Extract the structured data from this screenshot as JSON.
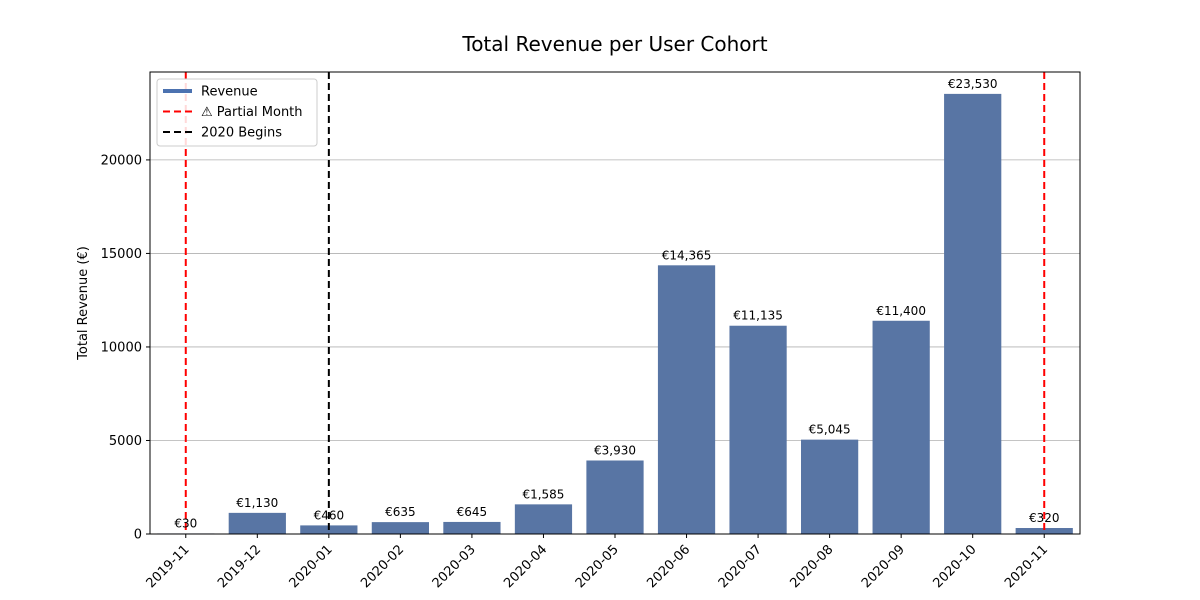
{
  "chart_data": {
    "type": "bar",
    "title": "Total Revenue per User Cohort",
    "xlabel": "",
    "ylabel": "Total Revenue (€)",
    "categories": [
      "2019-11",
      "2019-12",
      "2020-01",
      "2020-02",
      "2020-03",
      "2020-04",
      "2020-05",
      "2020-06",
      "2020-07",
      "2020-08",
      "2020-09",
      "2020-10",
      "2020-11"
    ],
    "values": [
      30,
      1130,
      460,
      635,
      645,
      1585,
      3930,
      14365,
      11135,
      5045,
      11400,
      23530,
      320
    ],
    "data_labels": [
      "€30",
      "€1,130",
      "€460",
      "€635",
      "€645",
      "€1,585",
      "€3,930",
      "€14,365",
      "€11,135",
      "€5,045",
      "€11,400",
      "€23,530",
      "€320"
    ],
    "ylim": [
      0,
      24700
    ],
    "yticks": [
      0,
      5000,
      10000,
      15000,
      20000
    ],
    "grid": "y",
    "bar_color": "#5875a4",
    "legend_position": "top-left",
    "legend": [
      {
        "label": "Revenue",
        "style": "solid",
        "color": "#4c72b0"
      },
      {
        "label": "⚠ Partial Month",
        "style": "dashed",
        "color": "#ff0000"
      },
      {
        "label": "2020 Begins",
        "style": "dashed",
        "color": "#000000"
      }
    ],
    "vlines": [
      {
        "category": "2019-11",
        "color": "#ff0000",
        "style": "dashed"
      },
      {
        "category": "2020-11",
        "color": "#ff0000",
        "style": "dashed"
      },
      {
        "category": "2020-01",
        "color": "#000000",
        "style": "dashed"
      }
    ]
  }
}
